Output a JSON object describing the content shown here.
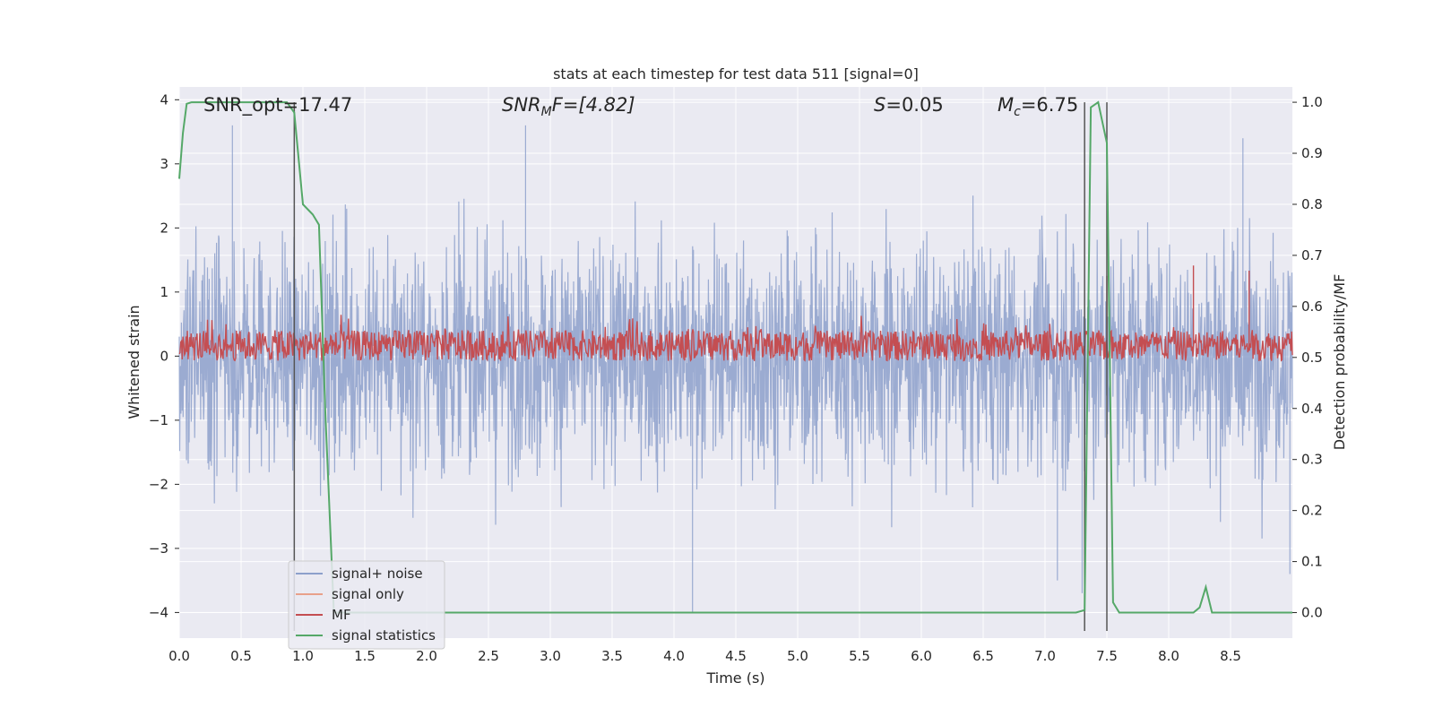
{
  "chart_data": {
    "type": "line",
    "title": "stats at each timestep for test data 511 [signal=0]",
    "xlabel": "Time (s)",
    "ylabel_left": "Whitened strain",
    "ylabel_right": "Detection probability/MF",
    "xlim": [
      0.0,
      9.0
    ],
    "ylim_left": [
      -4.4,
      4.2
    ],
    "ylim_right": [
      -0.05,
      1.03
    ],
    "x_ticks": [
      "0.0",
      "0.5",
      "1.0",
      "1.5",
      "2.0",
      "2.5",
      "3.0",
      "3.5",
      "4.0",
      "4.5",
      "5.0",
      "5.5",
      "6.0",
      "6.5",
      "7.0",
      "7.5",
      "8.0",
      "8.5"
    ],
    "y_ticks_left": [
      "4",
      "3",
      "2",
      "1",
      "0",
      "−1",
      "−2",
      "−3",
      "−4"
    ],
    "y_ticks_right": [
      "1.0",
      "0.9",
      "0.8",
      "0.7",
      "0.6",
      "0.5",
      "0.4",
      "0.3",
      "0.2",
      "0.1",
      "0.0"
    ],
    "grid": true,
    "legend_position": "lower-left",
    "annotations": {
      "snr_opt": "SNR_opt=17.47",
      "snr_mf_base": "SNR",
      "snr_mf_sub": "M",
      "snr_mf_tail": "F=[4.82]",
      "s_base": "S",
      "s_tail": "=0.05",
      "mc_base": "M",
      "mc_sub": "c",
      "mc_tail": "=6.75"
    },
    "series": [
      {
        "name": "signal+ noise",
        "color": "#8da0cb",
        "axis": "left",
        "description_range": [
          -3.8,
          3.8
        ],
        "notable_spikes": [
          [
            0.43,
            3.6
          ],
          [
            2.8,
            3.6
          ],
          [
            4.15,
            -4.0
          ],
          [
            7.1,
            -3.5
          ],
          [
            7.3,
            -3.7
          ],
          [
            8.6,
            3.4
          ],
          [
            8.98,
            -3.4
          ]
        ]
      },
      {
        "name": "signal only",
        "color": "#e8a18a",
        "axis": "left",
        "values_note": "flat at 0 (signal=0)"
      },
      {
        "name": "MF",
        "color": "#c44e52",
        "axis": "right",
        "baseline": 0.52,
        "notable_spikes": [
          [
            7.35,
            0.62
          ],
          [
            7.5,
            0.66
          ],
          [
            8.2,
            0.68
          ],
          [
            8.65,
            0.67
          ]
        ]
      },
      {
        "name": "signal statistics",
        "color": "#55a868",
        "axis": "right",
        "x": [
          0.0,
          0.03,
          0.06,
          0.1,
          0.2,
          0.5,
          0.8,
          0.87,
          0.93,
          1.0,
          1.08,
          1.13,
          1.18,
          1.25,
          1.5,
          3.0,
          5.0,
          7.0,
          7.25,
          7.32,
          7.37,
          7.43,
          7.5,
          7.55,
          7.6,
          7.7,
          8.0,
          8.2,
          8.25,
          8.3,
          8.35,
          8.5,
          9.0
        ],
        "y": [
          0.85,
          0.94,
          0.997,
          1.0,
          1.0,
          1.0,
          1.0,
          1.0,
          0.98,
          0.8,
          0.78,
          0.76,
          0.4,
          0.0,
          0.0,
          0.0,
          0.0,
          0.0,
          0.0,
          0.005,
          0.99,
          1.0,
          0.92,
          0.02,
          0.0,
          0.0,
          0.0,
          0.0,
          0.01,
          0.05,
          0.0,
          0.0,
          0.0
        ]
      }
    ],
    "vertical_lines": [
      0.93,
      7.32,
      7.5
    ]
  }
}
